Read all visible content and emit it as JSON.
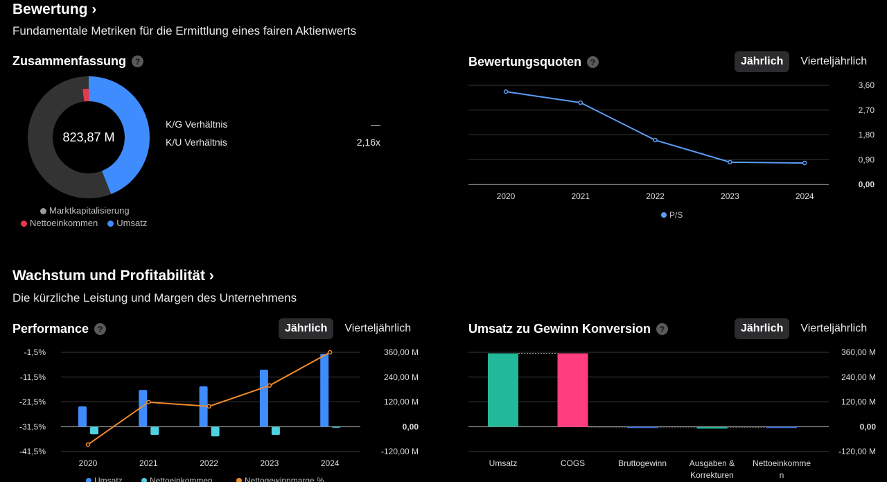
{
  "valuation": {
    "title": "Bewertung",
    "chevron": "›",
    "subtitle": "Fundamentale Metriken für die Ermittlung eines fairen Aktienwerts"
  },
  "summary": {
    "title": "Zusammenfassung",
    "help": "?",
    "center_value": "823,87 M",
    "legend": [
      "Marktkapitalisierung",
      "Nettoeinkommen",
      "Umsatz"
    ],
    "colors": {
      "market_cap": "#333333",
      "net_income": "#e8394a",
      "revenue": "#3f8cff"
    },
    "revenue_fraction": 0.44,
    "net_income_fraction": 0.02,
    "metrics": [
      {
        "label": "K/G Verhältnis",
        "value": "—"
      },
      {
        "label": "K/U Verhältnis",
        "value": "2,16x"
      }
    ]
  },
  "ratios": {
    "title": "Bewertungsquoten",
    "help": "?",
    "toggle": {
      "annual": "Jährlich",
      "quarterly": "Vierteljährlich",
      "selected": "annual"
    }
  },
  "growth": {
    "title": "Wachstum und Profitabilität",
    "chevron": "›",
    "subtitle": "Die kürzliche Leistung und Margen des Unternehmens"
  },
  "performance": {
    "title": "Performance",
    "help": "?",
    "toggle": {
      "annual": "Jährlich",
      "quarterly": "Vierteljährlich",
      "selected": "annual"
    }
  },
  "conversion": {
    "title": "Umsatz zu Gewinn Konversion",
    "help": "?",
    "toggle": {
      "annual": "Jährlich",
      "quarterly": "Vierteljährlich",
      "selected": "annual"
    }
  },
  "chart_data": [
    {
      "id": "ps",
      "type": "line",
      "categories": [
        "2020",
        "2021",
        "2022",
        "2023",
        "2024"
      ],
      "series": [
        {
          "name": "P/S",
          "values": [
            3.37,
            2.97,
            1.61,
            0.81,
            0.78
          ],
          "color": "#5b9cf5"
        }
      ],
      "yticks": [
        "0,00",
        "0,90",
        "1,80",
        "2,70",
        "3,60"
      ],
      "ylim": [
        0,
        3.6
      ],
      "legend": "bottom",
      "grid": true
    },
    {
      "id": "performance",
      "type": "bar",
      "categories": [
        "2020",
        "2021",
        "2022",
        "2023",
        "2024"
      ],
      "series": [
        {
          "name": "Umsatz",
          "type": "bar",
          "axis": "right",
          "values": [
            98,
            178,
            195,
            276,
            353
          ],
          "color": "#3f8cff"
        },
        {
          "name": "Nettoeinkommen",
          "type": "bar",
          "axis": "right",
          "values": [
            -37,
            -40,
            -47,
            -40,
            -3
          ],
          "color": "#4fd1e0"
        },
        {
          "name": "Nettogewinnmarge %",
          "type": "line",
          "axis": "left",
          "values": [
            -38.7,
            -21.6,
            -23.3,
            -14.9,
            -1.5
          ],
          "color": "#f08a2c"
        }
      ],
      "left_yticks": [
        "-41,5%",
        "-31,5%",
        "-21,5%",
        "-11,5%",
        "-1,5%"
      ],
      "left_ylim": [
        -41.5,
        -1.5
      ],
      "right_yticks": [
        "-120,00 M",
        "0,00",
        "120,00 M",
        "240,00 M",
        "360,00 M"
      ],
      "right_ylim": [
        -120,
        360
      ],
      "legend": "bottom",
      "grid": true
    },
    {
      "id": "conversion",
      "type": "waterfall",
      "categories": [
        "Umsatz",
        "COGS",
        "Bruttogewinn",
        "Ausgaben & Korrekturen",
        "Nettoeinkommen"
      ],
      "category_lines": [
        [
          "Umsatz"
        ],
        [
          "COGS"
        ],
        [
          "Bruttogewinn"
        ],
        [
          "Ausgaben &",
          "Korrekturen"
        ],
        [
          "Nettoeinkomme",
          "n"
        ]
      ],
      "values": [
        355,
        -357,
        -2,
        -1,
        -3
      ],
      "colors": [
        "#22b89a",
        "#ff3d7f",
        "#3a6fd8",
        "#22b89a",
        "#3a6fd8"
      ],
      "yticks": [
        "-120,00 M",
        "0,00",
        "120,00 M",
        "240,00 M",
        "360,00 M"
      ],
      "ylim": [
        -120,
        360
      ],
      "grid": true
    }
  ]
}
